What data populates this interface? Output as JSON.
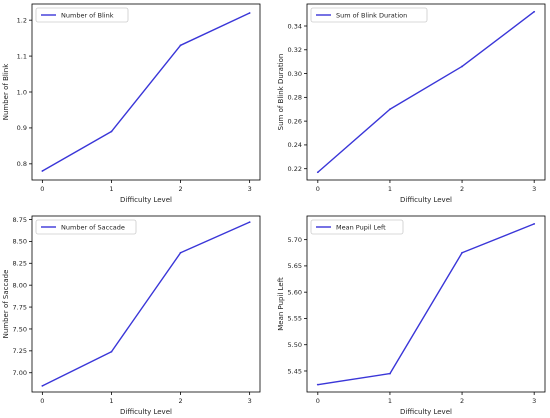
{
  "chart_data": [
    {
      "type": "line",
      "x": [
        0,
        1,
        2,
        3
      ],
      "series": [
        {
          "name": "Number of Blink",
          "values": [
            0.78,
            0.89,
            1.13,
            1.22
          ]
        }
      ],
      "xlabel": "Difficulty Level",
      "ylabel": "Number of Blink",
      "xlim": [
        -0.15,
        3.15
      ],
      "ylim": [
        0.755,
        1.245
      ],
      "xticks": [
        0,
        1,
        2,
        3
      ],
      "yticks": [
        0.8,
        0.9,
        1.0,
        1.1,
        1.2
      ],
      "ytick_labels": [
        "0.8",
        "0.9",
        "1.0",
        "1.1",
        "1.2"
      ],
      "legend": "top-left",
      "grid": false,
      "line_color": "#3a36d8"
    },
    {
      "type": "line",
      "x": [
        0,
        1,
        2,
        3
      ],
      "series": [
        {
          "name": "Sum of Blink Duration",
          "values": [
            0.217,
            0.27,
            0.306,
            0.352
          ]
        }
      ],
      "xlabel": "Difficulty Level",
      "ylabel": "Sum of Blink Duration",
      "xlim": [
        -0.15,
        3.15
      ],
      "ylim": [
        0.2105,
        0.3585
      ],
      "xticks": [
        0,
        1,
        2,
        3
      ],
      "yticks": [
        0.22,
        0.24,
        0.26,
        0.28,
        0.3,
        0.32,
        0.34
      ],
      "ytick_labels": [
        "0.22",
        "0.24",
        "0.26",
        "0.28",
        "0.30",
        "0.32",
        "0.34"
      ],
      "legend": "top-left",
      "grid": false,
      "line_color": "#3a36d8"
    },
    {
      "type": "line",
      "x": [
        0,
        1,
        2,
        3
      ],
      "series": [
        {
          "name": "Number of Saccade",
          "values": [
            6.85,
            7.24,
            8.37,
            8.72
          ]
        }
      ],
      "xlabel": "Difficulty Level",
      "ylabel": "Number of Saccade",
      "xlim": [
        -0.15,
        3.15
      ],
      "ylim": [
        6.78,
        8.79
      ],
      "xticks": [
        0,
        1,
        2,
        3
      ],
      "yticks": [
        7.0,
        7.25,
        7.5,
        7.75,
        8.0,
        8.25,
        8.5,
        8.75
      ],
      "ytick_labels": [
        "7.00",
        "7.25",
        "7.50",
        "7.75",
        "8.00",
        "8.25",
        "8.50",
        "8.75"
      ],
      "legend": "top-left",
      "grid": false,
      "line_color": "#3a36d8"
    },
    {
      "type": "line",
      "x": [
        0,
        1,
        2,
        3
      ],
      "series": [
        {
          "name": "Mean Pupil Left",
          "values": [
            5.424,
            5.445,
            5.675,
            5.73
          ]
        }
      ],
      "xlabel": "Difficulty Level",
      "ylabel": "Mean Pupil Left",
      "xlim": [
        -0.15,
        3.15
      ],
      "ylim": [
        5.41,
        5.745
      ],
      "xticks": [
        0,
        1,
        2,
        3
      ],
      "yticks": [
        5.45,
        5.5,
        5.55,
        5.6,
        5.65,
        5.7
      ],
      "ytick_labels": [
        "5.45",
        "5.50",
        "5.55",
        "5.60",
        "5.65",
        "5.70"
      ],
      "legend": "top-left",
      "grid": false,
      "line_color": "#3a36d8"
    }
  ]
}
